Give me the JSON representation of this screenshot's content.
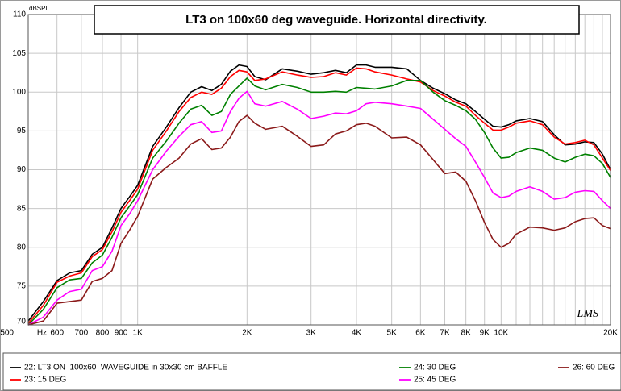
{
  "chart_data": {
    "type": "line",
    "title": "LT3 on 100x60 deg waveguide. Horizontal directivity.",
    "y_unit": "dBSPL",
    "x_unit": "Hz",
    "logo": "LMS",
    "xscale": "log",
    "grid": true,
    "xlim": [
      500,
      20000
    ],
    "xticks": [
      {
        "value": 500,
        "label": "500"
      },
      600,
      700,
      800,
      900,
      {
        "value": 1000,
        "label": "1K"
      },
      {
        "value": 2000,
        "label": "2K"
      },
      {
        "value": 3000,
        "label": "3K"
      },
      {
        "value": 4000,
        "label": "4K"
      },
      {
        "value": 5000,
        "label": "5K"
      },
      {
        "value": 6000,
        "label": "6K"
      },
      {
        "value": 7000,
        "label": "7K"
      },
      {
        "value": 8000,
        "label": "8K"
      },
      {
        "value": 9000,
        "label": "9K"
      },
      {
        "value": 10000,
        "label": "10K"
      },
      {
        "value": 20000,
        "label": "20K"
      }
    ],
    "x_minor_ticks": [
      11000,
      12000,
      13000,
      14000,
      15000,
      16000,
      17000,
      18000,
      19000
    ],
    "ylim": [
      70,
      110
    ],
    "yticks": [
      70,
      75,
      80,
      85,
      90,
      95,
      100,
      105,
      110
    ],
    "x": [
      500,
      550,
      600,
      650,
      700,
      750,
      800,
      850,
      900,
      950,
      1000,
      1100,
      1200,
      1300,
      1400,
      1500,
      1600,
      1700,
      1800,
      1900,
      2000,
      2100,
      2250,
      2500,
      2750,
      3000,
      3250,
      3500,
      3750,
      4000,
      4250,
      4500,
      5000,
      5500,
      6000,
      6500,
      7000,
      7500,
      8000,
      8500,
      9000,
      9500,
      10000,
      10500,
      11000,
      12000,
      13000,
      14000,
      15000,
      16000,
      17000,
      18000,
      19000,
      20000
    ],
    "series": [
      {
        "name": "22: LT3 ON  100x60  WAVEGUIDE in 30x30 cm BAFFLE",
        "color": "#000000",
        "values": [
          70.5,
          73,
          75.7,
          76.7,
          77,
          79.1,
          80,
          82.5,
          85,
          86.5,
          88,
          93,
          95.5,
          98,
          100,
          100.7,
          100.2,
          101,
          102.7,
          103.5,
          103.3,
          102,
          101.6,
          103,
          102.7,
          102.3,
          102.5,
          102.8,
          102.5,
          103.5,
          103.5,
          103.2,
          103.2,
          103,
          101.5,
          100.5,
          99.8,
          99,
          98.5,
          97.5,
          96.5,
          95.6,
          95.5,
          95.8,
          96.3,
          96.6,
          96.2,
          94.5,
          93.2,
          93.3,
          93.6,
          93.5,
          92,
          90
        ]
      },
      {
        "name": "23: 15 DEG",
        "color": "#ff0000",
        "values": [
          70.2,
          72.5,
          75.5,
          76.3,
          76.7,
          78.8,
          79.7,
          82,
          84.5,
          86,
          87.5,
          92.5,
          95,
          97.5,
          99.3,
          100,
          99.7,
          100.5,
          102,
          102.8,
          102.6,
          101.5,
          101.7,
          102.6,
          102.2,
          101.9,
          102,
          102.5,
          102.2,
          103.1,
          103,
          102.6,
          102.2,
          101.7,
          101.3,
          100.2,
          99.5,
          98.7,
          98.2,
          97,
          96,
          95.1,
          95.1,
          95.5,
          96,
          96.3,
          95.8,
          94.2,
          93.3,
          93.5,
          93.8,
          93.2,
          91.5,
          89.9
        ]
      },
      {
        "name": "24: 30 DEG",
        "color": "#008000",
        "values": [
          70,
          72,
          74.8,
          75.8,
          76,
          78,
          79,
          81.3,
          83.8,
          85.3,
          86.8,
          91.5,
          93.7,
          96,
          97.8,
          98.3,
          97,
          97.5,
          99.7,
          100.8,
          101.8,
          100.8,
          100.3,
          101,
          100.6,
          100,
          100,
          100.1,
          100,
          100.6,
          100.5,
          100.4,
          100.8,
          101.5,
          101.5,
          100,
          98.9,
          98.3,
          97.6,
          96.5,
          94.8,
          92.8,
          91.5,
          91.6,
          92.2,
          92.8,
          92.5,
          91.5,
          91,
          91.6,
          92,
          91.8,
          90.8,
          89
        ]
      },
      {
        "name": "25: 45 DEG",
        "color": "#ff00ff",
        "values": [
          70,
          71,
          73.2,
          74.3,
          74.6,
          77,
          77.5,
          79.5,
          82.8,
          84.3,
          86,
          90,
          92.4,
          94.3,
          95.8,
          96.2,
          94.8,
          95,
          97.5,
          99.2,
          100.1,
          98.5,
          98.2,
          98.8,
          97.8,
          96.6,
          96.9,
          97.3,
          97.2,
          97.6,
          98.5,
          98.7,
          98.5,
          98.2,
          97.9,
          96.5,
          95.2,
          94,
          93,
          91,
          89,
          87,
          86.4,
          86.6,
          87.2,
          87.8,
          87.2,
          86.2,
          86.4,
          87.1,
          87.3,
          87.2,
          86,
          85
        ]
      },
      {
        "name": "26: 60 DEG",
        "color": "#8b1a1a",
        "values": [
          70,
          70.5,
          72.8,
          73,
          73.2,
          75.6,
          76,
          77,
          80.5,
          82.2,
          84,
          88.8,
          90.3,
          91.5,
          93.3,
          94,
          92.6,
          92.8,
          94.2,
          96.2,
          97,
          96,
          95.2,
          95.6,
          94.3,
          93,
          93.2,
          94.6,
          95,
          95.8,
          96,
          95.6,
          94.1,
          94.2,
          93.2,
          91.3,
          89.5,
          89.7,
          88.5,
          86,
          83.2,
          81,
          80,
          80.5,
          81.7,
          82.6,
          82.5,
          82.2,
          82.5,
          83.3,
          83.7,
          83.8,
          82.8,
          82.4
        ]
      }
    ]
  }
}
